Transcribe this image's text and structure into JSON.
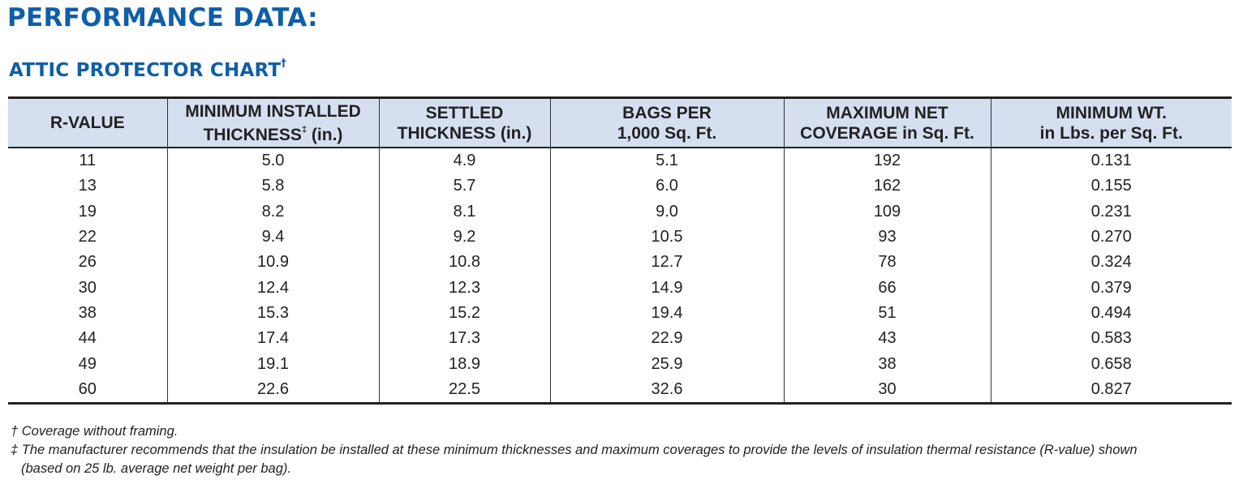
{
  "title": "PERFORMANCE DATA:",
  "chart_title": "ATTIC PROTECTOR CHART",
  "chart_title_mark": "†",
  "table": {
    "headers": [
      {
        "line1": "R-VALUE",
        "line2": "",
        "mark": "",
        "suffix": ""
      },
      {
        "line1": "MINIMUM INSTALLED",
        "line2": "THICKNESS",
        "mark": "‡",
        "suffix": " (in.)"
      },
      {
        "line1": "SETTLED",
        "line2": "THICKNESS",
        "mark": "",
        "suffix": " (in.)"
      },
      {
        "line1": "BAGS PER",
        "line2": "1,000 Sq. Ft.",
        "mark": "",
        "suffix": ""
      },
      {
        "line1": "MAXIMUM NET",
        "line2": "COVERAGE in Sq. Ft.",
        "mark": "",
        "suffix": ""
      },
      {
        "line1": "MINIMUM WT.",
        "line2": "in Lbs. per Sq. Ft.",
        "mark": "",
        "suffix": ""
      }
    ],
    "rows": [
      [
        "11",
        "5.0",
        "4.9",
        "5.1",
        "192",
        "0.131"
      ],
      [
        "13",
        "5.8",
        "5.7",
        "6.0",
        "162",
        "0.155"
      ],
      [
        "19",
        "8.2",
        "8.1",
        "9.0",
        "109",
        "0.231"
      ],
      [
        "22",
        "9.4",
        "9.2",
        "10.5",
        "93",
        "0.270"
      ],
      [
        "26",
        "10.9",
        "10.8",
        "12.7",
        "78",
        "0.324"
      ],
      [
        "30",
        "12.4",
        "12.3",
        "14.9",
        "66",
        "0.379"
      ],
      [
        "38",
        "15.3",
        "15.2",
        "19.4",
        "51",
        "0.494"
      ],
      [
        "44",
        "17.4",
        "17.3",
        "22.9",
        "43",
        "0.583"
      ],
      [
        "49",
        "19.1",
        "18.9",
        "25.9",
        "38",
        "0.658"
      ],
      [
        "60",
        "22.6",
        "22.5",
        "32.6",
        "30",
        "0.827"
      ]
    ]
  },
  "footnotes": {
    "dagger": "† Coverage without framing.",
    "double_dagger": "‡ The manufacturer recommends that the insulation be installed at these minimum thicknesses and maximum coverages to provide the levels of insulation thermal resistance (R-value) shown",
    "double_dagger_cont": "(based on 25 lb. average net weight per bag)."
  },
  "colors": {
    "title_blue": "#0f5ea8",
    "header_bg": "#d5dff0",
    "rule": "#222222"
  }
}
